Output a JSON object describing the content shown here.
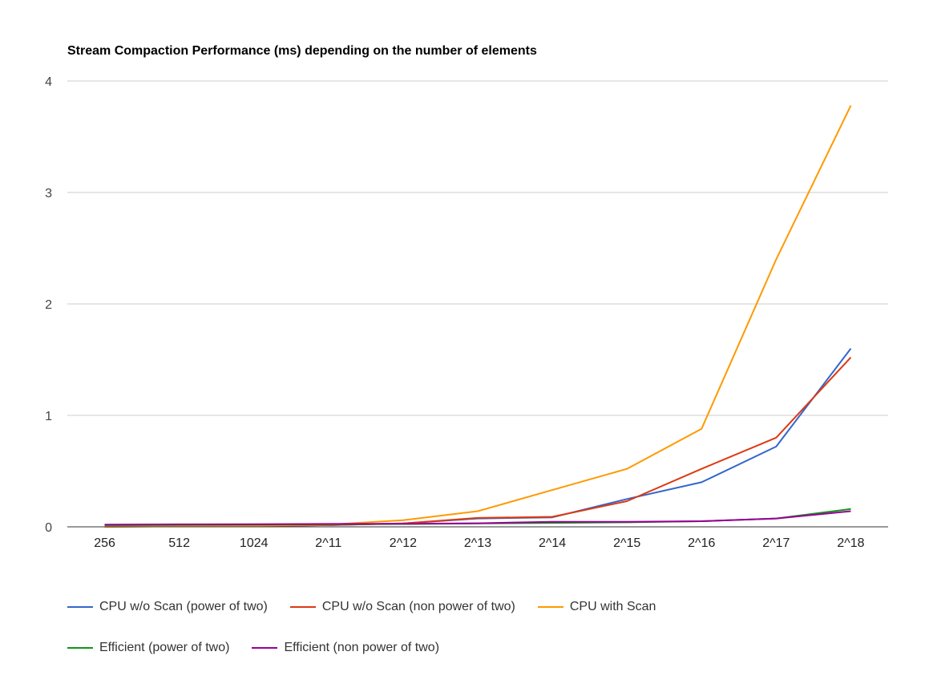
{
  "chart_data": {
    "type": "line",
    "title": "Stream Compaction Performance (ms) depending on the number of elements",
    "xlabel": "",
    "ylabel": "",
    "categories": [
      "256",
      "512",
      "1024",
      "2^11",
      "2^12",
      "2^13",
      "2^14",
      "2^15",
      "2^16",
      "2^17",
      "2^18"
    ],
    "ylim": [
      0,
      4
    ],
    "yticks": [
      "0",
      "1",
      "2",
      "3",
      "4"
    ],
    "grid": true,
    "legend_position": "bottom",
    "series": [
      {
        "name": "CPU w/o Scan (power of two)",
        "color": "#3366cc",
        "values": [
          0.002,
          0.004,
          0.008,
          0.015,
          0.03,
          0.075,
          0.085,
          0.25,
          0.4,
          0.72,
          1.6
        ]
      },
      {
        "name": "CPU w/o Scan (non power of two)",
        "color": "#dc3912",
        "values": [
          0.002,
          0.004,
          0.008,
          0.015,
          0.03,
          0.08,
          0.09,
          0.23,
          0.52,
          0.8,
          1.52
        ]
      },
      {
        "name": "CPU with Scan",
        "color": "#ff9900",
        "values": [
          0.002,
          0.005,
          0.01,
          0.02,
          0.06,
          0.14,
          0.33,
          0.52,
          0.88,
          2.4,
          3.78
        ]
      },
      {
        "name": "Efficient (power of two)",
        "color": "#109618",
        "values": [
          0.015,
          0.018,
          0.02,
          0.022,
          0.025,
          0.03,
          0.035,
          0.04,
          0.05,
          0.075,
          0.16
        ]
      },
      {
        "name": "Efficient (non power of two)",
        "color": "#990099",
        "values": [
          0.02,
          0.022,
          0.024,
          0.026,
          0.028,
          0.032,
          0.045,
          0.045,
          0.05,
          0.075,
          0.14
        ]
      }
    ]
  }
}
